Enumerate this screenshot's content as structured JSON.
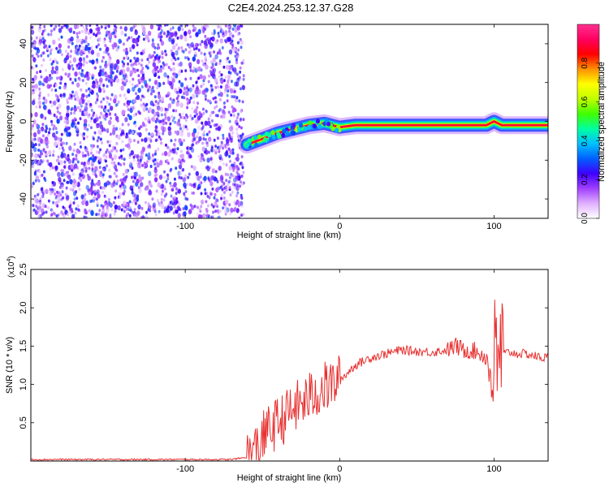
{
  "figure": {
    "title": "C2E4.2024.253.12.37.G28"
  },
  "chart_data": [
    {
      "type": "heatmap",
      "xlabel": "Height of straight line (km)",
      "ylabel": "Frequency (Hz)",
      "xlim": [
        -200,
        135
      ],
      "ylim": [
        -50,
        50
      ],
      "xticks": [
        -100,
        0,
        100
      ],
      "xtick_labels": [
        "-100",
        "0",
        "100"
      ],
      "yticks": [
        -40,
        -20,
        0,
        20,
        40
      ],
      "ytick_labels": [
        "-40",
        "-20",
        "0",
        "20",
        "40"
      ],
      "colorbar": {
        "label": "Normalized spectral amplitude",
        "range": [
          0,
          1
        ],
        "ticks": [
          0.0,
          0.2,
          0.4,
          0.6,
          0.8
        ],
        "tick_labels": [
          "0.0",
          "0.2",
          "0.4",
          "0.6",
          "0.8"
        ],
        "colormap": [
          "#ffffff",
          "#e0b0ff",
          "#a040ff",
          "#4000ff",
          "#0060ff",
          "#00c0ff",
          "#00ffa0",
          "#40ff00",
          "#c0ff00",
          "#ffff00",
          "#ff9000",
          "#ff0000",
          "#ff0060",
          "#ff3090"
        ]
      },
      "noise_region": {
        "x_range": [
          -200,
          -62
        ],
        "amplitude": [
          0.05,
          0.3
        ]
      },
      "signal_trace": {
        "x": [
          -60,
          -50,
          -40,
          -30,
          -20,
          -10,
          0,
          10,
          20,
          40,
          60,
          80,
          95,
          100,
          105,
          120,
          135
        ],
        "freq_hz": [
          -12,
          -9,
          -6,
          -4,
          -2,
          -1,
          -3,
          -2,
          -2,
          -2,
          -2,
          -2,
          -2,
          0,
          -2,
          -2,
          -2
        ],
        "amplitude": [
          0.3,
          0.4,
          0.5,
          0.6,
          0.7,
          0.75,
          0.8,
          0.85,
          0.85,
          0.85,
          0.85,
          0.85,
          0.6,
          0.5,
          0.85,
          0.85,
          0.85
        ]
      },
      "grid": false,
      "legend": "none"
    },
    {
      "type": "line",
      "xlabel": "Height of straight line (km)",
      "ylabel": "SNR (10 * v/v)",
      "yscale_label": "(x10",
      "yscale_exponent": "4",
      "xlim": [
        -200,
        135
      ],
      "ylim": [
        0,
        2.5
      ],
      "xticks": [
        -100,
        0,
        100
      ],
      "xtick_labels": [
        "-100",
        "0",
        "100"
      ],
      "yticks": [
        0.5,
        1.0,
        1.5,
        2.0,
        2.5
      ],
      "ytick_labels": [
        "0.5",
        "1.0",
        "1.5",
        "2.0",
        "2.5"
      ],
      "series": [
        {
          "color": "#e83030",
          "x": [
            -200,
            -150,
            -100,
            -70,
            -60,
            -55,
            -50,
            -45,
            -40,
            -35,
            -30,
            -25,
            -20,
            -15,
            -10,
            -5,
            0,
            5,
            10,
            20,
            30,
            40,
            50,
            60,
            70,
            75,
            80,
            85,
            90,
            95,
            98,
            100,
            102,
            104,
            106,
            110,
            115,
            120,
            125,
            130,
            135
          ],
          "y": [
            0.02,
            0.02,
            0.02,
            0.02,
            0.05,
            0.12,
            0.3,
            0.42,
            0.5,
            0.58,
            0.68,
            0.75,
            0.82,
            0.9,
            0.95,
            1.0,
            1.05,
            1.15,
            1.25,
            1.35,
            1.4,
            1.45,
            1.43,
            1.42,
            1.45,
            1.5,
            1.45,
            1.45,
            1.42,
            1.35,
            1.2,
            1.35,
            1.1,
            1.5,
            1.4,
            1.42,
            1.4,
            1.4,
            1.38,
            1.35,
            1.35
          ]
        }
      ],
      "grid": false,
      "legend": "none"
    }
  ]
}
